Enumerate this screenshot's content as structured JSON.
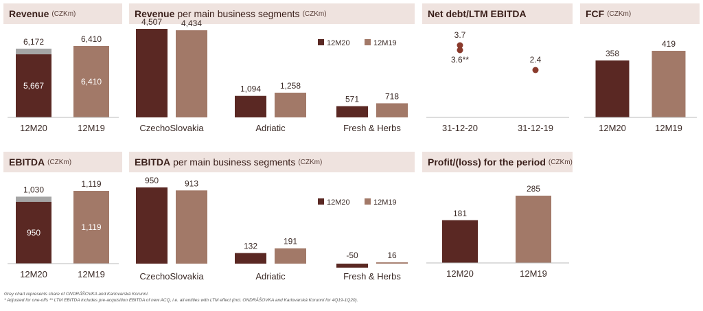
{
  "colors": {
    "dark": "#5a2823",
    "light": "#a27968",
    "grey": "#a5a5a5",
    "header_bg": "#efe3df",
    "dot": "#8a3a2c"
  },
  "panels": {
    "revenue": {
      "title_bold": "Revenue",
      "title_rest": "",
      "unit": "(CZKm)"
    },
    "revenue_seg": {
      "title_bold": "Revenue",
      "title_rest": "per main business segments",
      "unit": "(CZKm)"
    },
    "netdebt": {
      "title_bold": "Net debt/LTM EBITDA",
      "title_rest": "",
      "unit": ""
    },
    "fcf": {
      "title_bold": "FCF",
      "title_rest": "",
      "unit": "(CZKm)"
    },
    "ebitda": {
      "title_bold": "EBITDA",
      "title_rest": "",
      "unit": "(CZKm)"
    },
    "ebitda_seg": {
      "title_bold": "EBITDA",
      "title_rest": "per main business segments",
      "unit": "(CZKm)"
    },
    "profit": {
      "title_bold": "Profit/(loss) for the period",
      "title_rest": "",
      "unit": "(CZKm)"
    }
  },
  "chart_data": [
    {
      "id": "revenue",
      "type": "bar",
      "title": "Revenue",
      "categories": [
        "12M20",
        "12M19"
      ],
      "totals": [
        6172,
        6410
      ],
      "series": [
        {
          "values": [
            5667,
            6410
          ],
          "labels": [
            "5,667",
            "6,410"
          ]
        },
        {
          "values": [
            505,
            0
          ]
        }
      ],
      "total_labels": [
        "6,172",
        "6,410"
      ],
      "ylim": [
        0,
        6410
      ]
    },
    {
      "id": "revenue_seg",
      "type": "bar",
      "title": "Revenue per main business segments",
      "categories": [
        "CzechoSlovakia",
        "Adriatic",
        "Fresh & Herbs"
      ],
      "series": [
        {
          "name": "12M20",
          "values": [
            4507,
            1094,
            571
          ],
          "labels": [
            "4,507",
            "1,094",
            "571"
          ]
        },
        {
          "name": "12M19",
          "values": [
            4434,
            1258,
            718
          ],
          "labels": [
            "4,434",
            "1,258",
            "718"
          ]
        }
      ],
      "ylim": [
        0,
        4507
      ],
      "legend": "top-right"
    },
    {
      "id": "netdebt",
      "type": "scatter",
      "title": "Net debt/LTM EBITDA",
      "categories": [
        "31-12-20",
        "31-12-19"
      ],
      "points": [
        {
          "category": "31-12-20",
          "value": 3.7,
          "label": "3.7"
        },
        {
          "category": "31-12-20",
          "value": 3.6,
          "label": "3.6**"
        },
        {
          "category": "31-12-19",
          "value": 2.4,
          "label": "2.4"
        }
      ]
    },
    {
      "id": "fcf",
      "type": "bar",
      "title": "FCF",
      "categories": [
        "12M20",
        "12M19"
      ],
      "series": [
        {
          "values": [
            358,
            419
          ],
          "labels": [
            "358",
            "419"
          ]
        }
      ],
      "ylim": [
        0,
        419
      ]
    },
    {
      "id": "ebitda",
      "type": "bar",
      "title": "EBITDA",
      "categories": [
        "12M20",
        "12M19"
      ],
      "totals": [
        1030,
        1119
      ],
      "series": [
        {
          "values": [
            950,
            1119
          ],
          "labels": [
            "950",
            "1,119"
          ]
        },
        {
          "values": [
            80,
            0
          ]
        }
      ],
      "total_labels": [
        "1,030",
        "1,119"
      ],
      "ylim": [
        0,
        1119
      ]
    },
    {
      "id": "ebitda_seg",
      "type": "bar",
      "title": "EBITDA per main business segments",
      "categories": [
        "CzechoSlovakia",
        "Adriatic",
        "Fresh & Herbs"
      ],
      "series": [
        {
          "name": "12M20",
          "values": [
            950,
            132,
            -50
          ],
          "labels": [
            "950",
            "132",
            "-50"
          ]
        },
        {
          "name": "12M19",
          "values": [
            913,
            191,
            16
          ],
          "labels": [
            "913",
            "191",
            "16"
          ]
        }
      ],
      "ylim": [
        -50,
        950
      ],
      "legend": "top-right"
    },
    {
      "id": "profit",
      "type": "bar",
      "title": "Profit/(loss) for the period",
      "categories": [
        "12M20",
        "12M19"
      ],
      "series": [
        {
          "values": [
            181,
            285
          ],
          "labels": [
            "181",
            "285"
          ]
        }
      ],
      "ylim": [
        0,
        285
      ]
    }
  ],
  "footnotes": [
    "Grey chart represents share of ONDRÁŠOVKA and Karlovarská Korunní.",
    "* Adjusted for one-offs  ** LTM EBITDA includes pre-acquisition EBITDA of new ACQ, i.e. all entities with LTM effect (incl. ONDRÁŠOVKA and Karlovarská Korunní for 4Q19-1Q20)."
  ]
}
